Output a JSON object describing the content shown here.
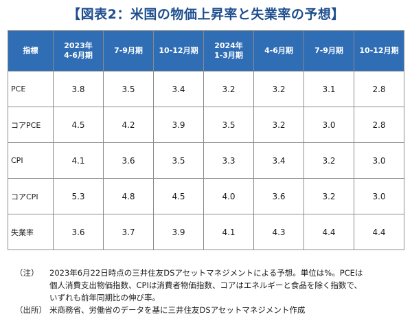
{
  "title": "【図表2：米国の物価上昇率と失業率の予想】",
  "chart_data": {
    "type": "table",
    "corner_header": "指標",
    "columns": [
      [
        "2023年",
        "4-6月期"
      ],
      [
        "7-9月期"
      ],
      [
        "10-12月期"
      ],
      [
        "2024年",
        "1-3月期"
      ],
      [
        "4-6月期"
      ],
      [
        "7-9月期"
      ],
      [
        "10-12月期"
      ]
    ],
    "rows": [
      {
        "label": "PCE",
        "values": [
          "3.8",
          "3.5",
          "3.4",
          "3.2",
          "3.2",
          "3.1",
          "2.8"
        ]
      },
      {
        "label": "コアPCE",
        "values": [
          "4.5",
          "4.2",
          "3.9",
          "3.5",
          "3.2",
          "3.0",
          "2.8"
        ]
      },
      {
        "label": "CPI",
        "values": [
          "4.1",
          "3.6",
          "3.5",
          "3.3",
          "3.4",
          "3.2",
          "3.0"
        ]
      },
      {
        "label": "コアCPI",
        "values": [
          "5.3",
          "4.8",
          "4.5",
          "4.0",
          "3.6",
          "3.2",
          "3.0"
        ]
      },
      {
        "label": "失業率",
        "values": [
          "3.6",
          "3.7",
          "3.9",
          "4.1",
          "4.3",
          "4.4",
          "4.4"
        ]
      }
    ],
    "colors": {
      "header_bg": "#2f6db5",
      "title": "#1d4e8f"
    }
  },
  "notes": [
    {
      "key": "（注）",
      "lines": [
        "2023年6月22日時点の三井住友DSアセットマネジメントによる予想。単位は%。PCEは",
        "個人消費支出物価指数、CPIは消費者物価指数、コアはエネルギーと食品を除く指数で、",
        "いずれも前年同期比の伸び率。"
      ]
    },
    {
      "key": "（出所）",
      "lines": [
        "米商務省、労働省のデータを基に三井住友DSアセットマネジメント作成"
      ]
    }
  ]
}
